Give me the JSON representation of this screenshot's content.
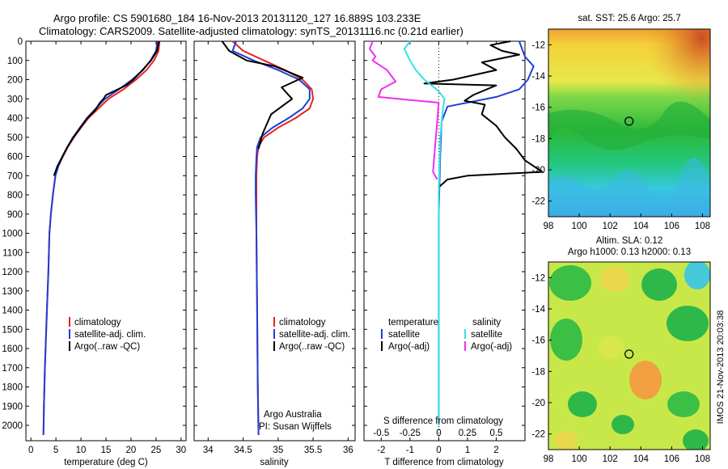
{
  "header": {
    "line1": "Argo profile: CS 5901680_184 16-Nov-2013 20131120_127 16.889S 103.233E",
    "line2": "Climatology: CARS2009. Satellite-adjusted climatology: synTS_20131116.nc (0.21d earlier)"
  },
  "side_label": "IMOS 21-Nov-2013 20:03:38",
  "colors": {
    "climatology": "#e8231e",
    "satellite": "#1f3fd6",
    "argo": "#000000",
    "sal_satellite": "#35e3e3",
    "sal_argo": "#f02ff0"
  },
  "chart_data": [
    {
      "type": "line",
      "id": "temperature",
      "xlabel": "temperature (deg C)",
      "xlim": [
        -1,
        31
      ],
      "ylim": [
        2080,
        0
      ],
      "xticks": [
        0,
        5,
        10,
        15,
        20,
        25,
        30
      ],
      "yticks": [
        0,
        100,
        200,
        300,
        400,
        500,
        600,
        700,
        800,
        900,
        1000,
        1100,
        1200,
        1300,
        1400,
        1500,
        1600,
        1700,
        1800,
        1900,
        2000
      ],
      "legend": [
        "climatology",
        "satellite-adj. clim.",
        "Argo(..raw -QC)"
      ],
      "series": [
        {
          "name": "climatology",
          "color": "climatology",
          "x": [
            25.7,
            25.5,
            24.6,
            23.1,
            21.0,
            18.5,
            15.5,
            13.5,
            11.5,
            10.0,
            8.6,
            7.4,
            6.4,
            5.5,
            4.9,
            4.4,
            4.0,
            3.7,
            3.5,
            3.2,
            2.8,
            2.6,
            2.5
          ],
          "y": [
            0,
            50,
            100,
            150,
            200,
            250,
            300,
            350,
            400,
            450,
            500,
            550,
            600,
            650,
            700,
            800,
            900,
            1000,
            1200,
            1400,
            1700,
            1900,
            2050
          ]
        },
        {
          "name": "satellite-adj. clim.",
          "color": "satellite",
          "x": [
            25.3,
            25.0,
            23.9,
            22.4,
            20.2,
            17.6,
            14.8,
            13.0,
            11.2,
            9.8,
            8.4,
            7.3,
            6.3,
            5.5,
            4.9,
            4.4,
            4.0,
            3.7,
            3.5,
            3.2,
            2.8,
            2.6,
            2.5
          ],
          "y": [
            0,
            50,
            100,
            150,
            200,
            250,
            300,
            350,
            400,
            450,
            500,
            550,
            600,
            650,
            700,
            800,
            900,
            1000,
            1200,
            1400,
            1700,
            1900,
            2050
          ]
        },
        {
          "name": "Argo(..raw -QC)",
          "color": "argo",
          "x": [
            25.6,
            25.2,
            24.0,
            22.3,
            20.5,
            19.0,
            15.0,
            14.5,
            13.8,
            12.8,
            11.3,
            9.9,
            8.5,
            7.3,
            6.3,
            5.3,
            4.6
          ],
          "y": [
            0,
            50,
            100,
            150,
            200,
            230,
            280,
            300,
            320,
            360,
            400,
            450,
            500,
            550,
            600,
            650,
            700
          ]
        }
      ]
    },
    {
      "type": "line",
      "id": "salinity",
      "xlabel": "salinity",
      "xlim": [
        33.8,
        36.1
      ],
      "ylim": [
        2080,
        0
      ],
      "xticks": [
        34,
        34.5,
        35,
        35.5,
        36
      ],
      "legend": [
        "climatology",
        "satellite-adj. clim.",
        "Argo(..raw -QC)"
      ],
      "annotation": [
        "Argo Australia",
        "PI: Susan Wijffels"
      ],
      "series": [
        {
          "name": "climatology",
          "color": "climatology",
          "x": [
            34.35,
            34.5,
            34.8,
            35.1,
            35.35,
            35.48,
            35.5,
            35.45,
            35.25,
            35.0,
            34.8,
            34.72,
            34.7,
            34.69,
            34.69,
            34.69,
            34.7,
            34.71,
            34.72
          ],
          "y": [
            0,
            50,
            100,
            150,
            200,
            250,
            300,
            350,
            400,
            450,
            500,
            550,
            600,
            700,
            800,
            1000,
            1400,
            1800,
            2050
          ]
        },
        {
          "name": "satellite-adj. clim.",
          "color": "satellite",
          "x": [
            34.4,
            34.35,
            34.65,
            35.0,
            35.3,
            35.45,
            35.45,
            35.35,
            35.15,
            34.92,
            34.75,
            34.7,
            34.69,
            34.68,
            34.68,
            34.69,
            34.7,
            34.71,
            34.72
          ],
          "y": [
            0,
            50,
            100,
            150,
            200,
            250,
            300,
            350,
            400,
            450,
            500,
            550,
            600,
            700,
            800,
            1000,
            1400,
            1800,
            2050
          ]
        },
        {
          "name": "Argo(..raw -QC)",
          "color": "argo",
          "x": [
            34.2,
            34.3,
            34.55,
            34.95,
            35.35,
            35.05,
            35.2,
            34.9,
            34.78,
            34.72
          ],
          "y": [
            0,
            50,
            100,
            130,
            190,
            240,
            300,
            380,
            480,
            560
          ]
        }
      ]
    },
    {
      "type": "line",
      "id": "differences",
      "xlabel": "T difference from climatology",
      "top_axis_label": "S difference from climatology",
      "xlim": [
        -2.6,
        3.0
      ],
      "ylim": [
        2080,
        0
      ],
      "xticks": [
        -2,
        -1,
        0,
        1,
        2
      ],
      "top_ticks": [
        -0.5,
        -0.25,
        0,
        0.25,
        0.5
      ],
      "legend_temperature": [
        "temperature",
        "satellite",
        "Argo(-adj)"
      ],
      "legend_salinity": [
        "salinity",
        "satellite",
        "Argo(-adj)"
      ],
      "series": [
        {
          "name": "temperature satellite",
          "color": "satellite",
          "x": [
            2.8,
            2.9,
            3.0,
            3.3,
            3.1,
            2.8,
            2.0,
            0.3,
            0.1,
            0.05,
            0.0,
            0.0,
            0.0,
            0.0
          ],
          "y": [
            0,
            40,
            80,
            130,
            200,
            250,
            290,
            340,
            420,
            600,
            900,
            1300,
            1700,
            2000
          ]
        },
        {
          "name": "temperature Argo(-adj)",
          "color": "argo",
          "x": [
            2.5,
            1.8,
            2.2,
            2.8,
            1.5,
            2.0,
            0.5,
            -0.5,
            2.0,
            1.2,
            0.9,
            1.6,
            1.5,
            2.0,
            2.3,
            2.7,
            3.0,
            3.6,
            1.0,
            0.3,
            0.0
          ],
          "y": [
            0,
            20,
            50,
            70,
            110,
            150,
            200,
            220,
            230,
            280,
            310,
            330,
            380,
            440,
            500,
            560,
            620,
            680,
            700,
            720,
            760
          ]
        },
        {
          "name": "salinity satellite",
          "color": "sal_satellite",
          "x": [
            -1.0,
            -1.2,
            -1.0,
            -0.8,
            -0.5,
            0.0,
            0.2,
            0.15,
            0.05,
            0.0,
            0.0,
            0.0
          ],
          "y": [
            0,
            40,
            100,
            150,
            200,
            260,
            300,
            350,
            500,
            800,
            1200,
            2000
          ]
        },
        {
          "name": "salinity Argo(-adj)",
          "color": "sal_argo",
          "x": [
            -2.3,
            -2.4,
            -2.2,
            -2.3,
            -1.8,
            -1.5,
            -2.0,
            -2.1,
            0.0,
            -0.2,
            -0.05
          ],
          "y": [
            0,
            40,
            80,
            100,
            150,
            210,
            250,
            290,
            320,
            680,
            720
          ]
        }
      ]
    },
    {
      "type": "heatmap",
      "id": "sst-map",
      "title": "sat. SST: 25.6 Argo: 25.7",
      "xlim": [
        98,
        108.5
      ],
      "ylim": [
        -23,
        -11
      ],
      "xticks": [
        98,
        100,
        102,
        104,
        106,
        108
      ],
      "yticks": [
        -12,
        -14,
        -16,
        -18,
        -20,
        -22
      ],
      "profile_location": [
        103.233,
        -16.889
      ]
    },
    {
      "type": "heatmap",
      "id": "sla-map",
      "title": "Altim. SLA: 0.12",
      "subtitle": "Argo h1000: 0.13 h2000: 0.13",
      "xlim": [
        98,
        108.5
      ],
      "ylim": [
        -23,
        -11
      ],
      "xticks": [
        98,
        100,
        102,
        104,
        106,
        108
      ],
      "yticks": [
        -12,
        -14,
        -16,
        -18,
        -20,
        -22
      ],
      "profile_location": [
        103.233,
        -16.889
      ]
    }
  ]
}
